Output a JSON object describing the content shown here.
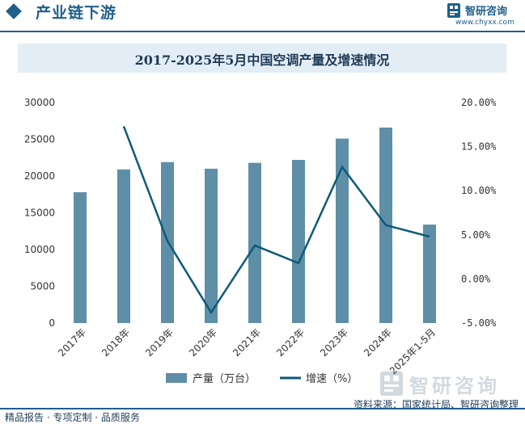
{
  "header": {
    "title": "产业链下游"
  },
  "logo": {
    "name": "智研咨询",
    "url": "www.chyxx.com"
  },
  "chart_data": {
    "type": "bar",
    "title": "2017-2025年5月中国空调产量及增速情况",
    "categories": [
      "2017年",
      "2018年",
      "2019年",
      "2020年",
      "2021年",
      "2022年",
      "2023年",
      "2024年",
      "2025年1-5月"
    ],
    "series": [
      {
        "name": "产量（万台）",
        "type": "bar",
        "axis": "left",
        "color": "#5e8fa6",
        "values": [
          17800,
          20900,
          21900,
          21000,
          21800,
          22200,
          25100,
          26600,
          13400
        ]
      },
      {
        "name": "增速（%）",
        "type": "line",
        "axis": "right",
        "color": "#0d5b78",
        "values": [
          null,
          17.3,
          4.3,
          -3.8,
          3.8,
          1.8,
          12.7,
          6.1,
          4.8
        ]
      }
    ],
    "y_left": {
      "ylim": [
        0,
        30000
      ],
      "ticks": [
        "0",
        "5000",
        "10000",
        "15000",
        "20000",
        "25000",
        "30000"
      ]
    },
    "y_right": {
      "ylim": [
        -5,
        20
      ],
      "ticks": [
        "-5.00%",
        "0.00%",
        "5.00%",
        "10.00%",
        "15.00%",
        "20.00%"
      ]
    },
    "grid": false,
    "legend_position": "bottom"
  },
  "footer": {
    "left": "精品报告 · 专项定制 · 品质服务",
    "source": "资料来源：国家统计局、智研咨询整理"
  },
  "watermark": {
    "text": "智研咨询"
  },
  "colors": {
    "brand": "#1f5f8b",
    "bar": "#5e8fa6",
    "line": "#0d5b78",
    "title_bg": "#e3edf5"
  }
}
